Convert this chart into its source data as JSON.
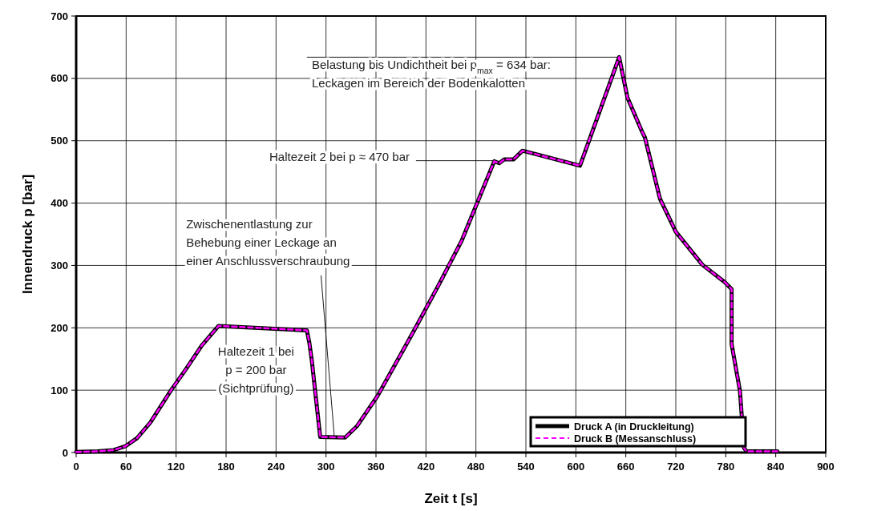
{
  "chart_data": {
    "type": "line",
    "xlabel": "Zeit  t  [s]",
    "ylabel": "Innendruck  p  [bar]",
    "xlim": [
      0,
      900
    ],
    "xticks": [
      0,
      60,
      120,
      180,
      240,
      300,
      360,
      420,
      480,
      540,
      600,
      660,
      720,
      780,
      840,
      900
    ],
    "ylim": [
      0,
      700
    ],
    "yticks": [
      0,
      100,
      200,
      300,
      400,
      500,
      600,
      700
    ],
    "grid": true,
    "legend": "bottom right",
    "marker": "none",
    "x": [
      0,
      26,
      45,
      59,
      73,
      89,
      114,
      132,
      151,
      171,
      277,
      280,
      283,
      293,
      323,
      337,
      362,
      405,
      435,
      463,
      502,
      508,
      514,
      525,
      536,
      605,
      652,
      662,
      679,
      683,
      701,
      720,
      752,
      779,
      787,
      787,
      797,
      802,
      805,
      842
    ],
    "series": [
      {
        "name": "Druck A (in Druckleitung)",
        "color": "#000000",
        "line_style": "solid",
        "values": [
          1,
          2,
          4,
          10,
          23,
          48,
          100,
          134,
          172,
          203,
          196,
          176,
          147,
          25,
          24,
          42,
          91,
          194,
          268,
          340,
          467,
          464,
          470,
          470,
          484,
          460,
          634,
          569,
          516,
          505,
          407,
          354,
          301,
          273,
          262,
          174,
          99,
          7,
          2,
          2
        ]
      },
      {
        "name": "Druck B (Messanschluss)",
        "color": "#ff00ff",
        "line_style": "dashed",
        "values": [
          1,
          2,
          4,
          10,
          23,
          48,
          100,
          134,
          172,
          203,
          196,
          176,
          147,
          25,
          24,
          42,
          91,
          194,
          268,
          340,
          467,
          464,
          470,
          470,
          484,
          460,
          634,
          569,
          516,
          505,
          407,
          354,
          301,
          273,
          262,
          174,
          99,
          7,
          2,
          2
        ]
      }
    ],
    "annotations": [
      "Haltezeit 1 bei\np =  200 bar\n(Sichtprüfung)",
      {
        "text": "Zwischenentlastung zur\nBehebung einer Leckage an\neiner Anschlussverschraubung",
        "x": 310,
        "y": 25
      },
      {
        "text": "Haltezeit 2 bei p ≈  470 bar",
        "x": 505,
        "y": 468
      },
      {
        "text": "Belastung bis Undichtheit bei p$_{max}$ = 634 bar:\nLeckagen im Bereich der Bodenkalotten",
        "x": 652,
        "y": 634
      }
    ]
  }
}
